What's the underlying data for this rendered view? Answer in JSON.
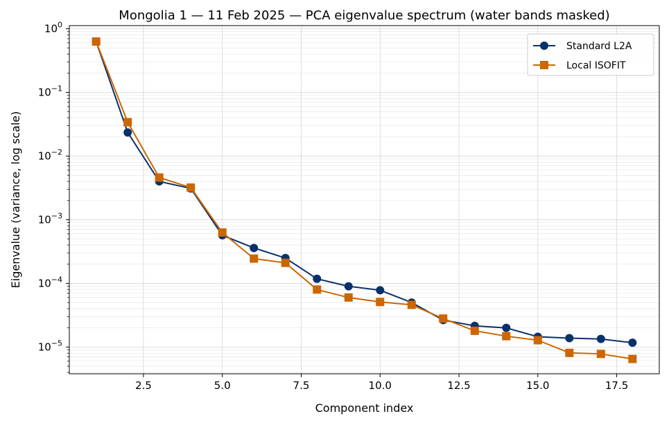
{
  "chart_data": {
    "type": "line",
    "title": "Mongolia 1 — 11 Feb 2025 — PCA eigenvalue spectrum (water bands masked)",
    "xlabel": "Component index",
    "ylabel": "Eigenvalue (variance, log scale)",
    "xlim": [
      0.15,
      18.85
    ],
    "ylim": [
      3.8e-06,
      1.12
    ],
    "yscale": "log",
    "grid": true,
    "legend_position": "top-right",
    "x_ticks": [
      2.5,
      5.0,
      7.5,
      10.0,
      12.5,
      15.0,
      17.5
    ],
    "x_tick_labels": [
      "2.5",
      "5.0",
      "7.5",
      "10.0",
      "12.5",
      "15.0",
      "17.5"
    ],
    "y_ticks": [
      1e-05,
      0.0001,
      0.001,
      0.01,
      0.1,
      1
    ],
    "y_tick_labels": [
      {
        "base": "10",
        "exp": "−5"
      },
      {
        "base": "10",
        "exp": "−4"
      },
      {
        "base": "10",
        "exp": "−3"
      },
      {
        "base": "10",
        "exp": "−2"
      },
      {
        "base": "10",
        "exp": "−1"
      },
      {
        "base": "10",
        "exp": "0"
      }
    ],
    "x": [
      1,
      2,
      3,
      4,
      5,
      6,
      7,
      8,
      9,
      10,
      11,
      12,
      13,
      14,
      15,
      16,
      17,
      18
    ],
    "series": [
      {
        "name": "Standard L2A",
        "color": "#08306b",
        "marker": "circle",
        "values": [
          0.63,
          0.0235,
          0.004,
          0.0031,
          0.00057,
          0.00036,
          0.00025,
          0.000118,
          9e-05,
          7.8e-05,
          5e-05,
          2.65e-05,
          2.15e-05,
          2e-05,
          1.45e-05,
          1.38e-05,
          1.34e-05,
          1.17e-05
        ]
      },
      {
        "name": "Local ISOFIT",
        "color": "#cc6600",
        "marker": "square",
        "values": [
          0.63,
          0.034,
          0.0046,
          0.0032,
          0.00063,
          0.000245,
          0.00021,
          8e-05,
          6e-05,
          5.1e-05,
          4.6e-05,
          2.8e-05,
          1.8e-05,
          1.48e-05,
          1.28e-05,
          8.1e-06,
          7.8e-06,
          6.5e-06
        ]
      }
    ]
  }
}
